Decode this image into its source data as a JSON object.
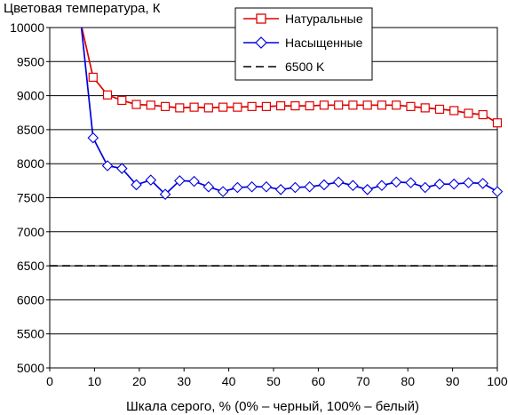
{
  "chart_data": {
    "type": "line",
    "ylabel": "Цветовая температура, К",
    "xlabel": "Шкала серого, % (0% – черный, 100% – белый)",
    "xlim": [
      0,
      100
    ],
    "ylim": [
      5000,
      10000
    ],
    "x_ticks": [
      "0",
      "10",
      "20",
      "30",
      "40",
      "50",
      "60",
      "70",
      "80",
      "90",
      "100"
    ],
    "y_ticks": [
      "10000",
      "9500",
      "9000",
      "8500",
      "8000",
      "7500",
      "7000",
      "6500",
      "6000",
      "5500",
      "5000"
    ],
    "grid": "horizontal",
    "legend_position": "top-right",
    "colors": {
      "natural": "#e00000",
      "saturated": "#0000dd",
      "reference": "#000000"
    },
    "x": [
      7,
      9.68,
      12.9,
      16.13,
      19.35,
      22.58,
      25.81,
      29.03,
      32.26,
      35.48,
      38.71,
      41.94,
      45.16,
      48.39,
      51.61,
      54.84,
      58.06,
      61.29,
      64.52,
      67.74,
      70.97,
      74.19,
      77.42,
      80.65,
      83.87,
      87.1,
      90.32,
      93.55,
      96.77,
      100
    ],
    "series": [
      {
        "name": "Натуральные",
        "color": "#e00000",
        "marker": "square",
        "values": [
          10050,
          9270,
          9010,
          8930,
          8870,
          8860,
          8840,
          8820,
          8830,
          8820,
          8830,
          8830,
          8840,
          8840,
          8850,
          8850,
          8850,
          8860,
          8860,
          8860,
          8860,
          8860,
          8860,
          8840,
          8820,
          8800,
          8780,
          8740,
          8720,
          8600
        ]
      },
      {
        "name": "Насыщенные",
        "color": "#0000dd",
        "marker": "diamond",
        "values": [
          10050,
          8380,
          7970,
          7930,
          7690,
          7760,
          7550,
          7750,
          7740,
          7660,
          7590,
          7650,
          7660,
          7660,
          7620,
          7650,
          7660,
          7690,
          7730,
          7680,
          7620,
          7680,
          7730,
          7720,
          7650,
          7700,
          7700,
          7720,
          7710,
          7590
        ]
      },
      {
        "name": "6500 K",
        "color": "#000000",
        "dash": "dashed",
        "constant": 6500
      }
    ]
  }
}
